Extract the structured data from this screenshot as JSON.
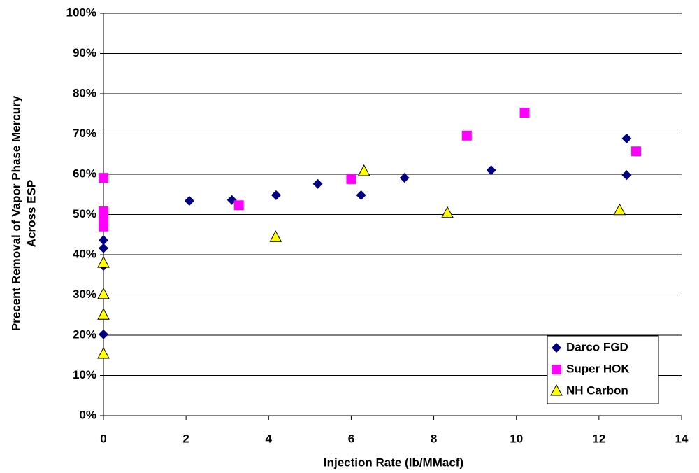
{
  "chart_data": {
    "type": "scatter",
    "xlabel": "Injection Rate (lb/MMacf)",
    "ylabel": [
      "Precent Removal of Vapor Phase Mercury",
      "Across ESP"
    ],
    "xlim": [
      0,
      14
    ],
    "xticks": [
      0,
      2,
      4,
      6,
      8,
      10,
      12,
      14
    ],
    "ylim": [
      0,
      100
    ],
    "yticks": [
      {
        "value": 0,
        "label": "0%"
      },
      {
        "value": 10,
        "label": "10%"
      },
      {
        "value": 20,
        "label": "20%"
      },
      {
        "value": 30,
        "label": "30%"
      },
      {
        "value": 40,
        "label": "40%"
      },
      {
        "value": 50,
        "label": "50%"
      },
      {
        "value": 60,
        "label": "60%"
      },
      {
        "value": 70,
        "label": "70%"
      },
      {
        "value": 80,
        "label": "80%"
      },
      {
        "value": 90,
        "label": "90%"
      },
      {
        "value": 100,
        "label": "100%"
      }
    ],
    "grid": true,
    "legend": "lower right",
    "series": [
      {
        "name": "Darco FGD",
        "color": "#000080",
        "marker": "diamond",
        "x": [
          0,
          0,
          0,
          0,
          2.08,
          3.11,
          4.18,
          5.19,
          6.24,
          7.29,
          9.39,
          12.67,
          12.67
        ],
        "values": [
          43.6,
          41.6,
          37.2,
          20.2,
          53.4,
          53.6,
          54.8,
          57.6,
          54.8,
          59.1,
          61.0,
          68.9,
          59.8
        ]
      },
      {
        "name": "Super HOK",
        "color": "#ff00ff",
        "marker": "square",
        "x": [
          0,
          0,
          0,
          0,
          3.28,
          6.0,
          8.8,
          10.2,
          12.9
        ],
        "values": [
          59.1,
          50.8,
          49.4,
          47.0,
          52.3,
          58.8,
          69.6,
          75.3,
          65.7
        ]
      },
      {
        "name": "NH Carbon",
        "color": "#ffff00",
        "marker": "triangle",
        "x": [
          0,
          0,
          0,
          0,
          4.17,
          6.31,
          8.33,
          12.5
        ],
        "values": [
          37.9,
          30.1,
          25.0,
          15.3,
          44.3,
          60.7,
          50.3,
          51.0
        ]
      }
    ]
  }
}
